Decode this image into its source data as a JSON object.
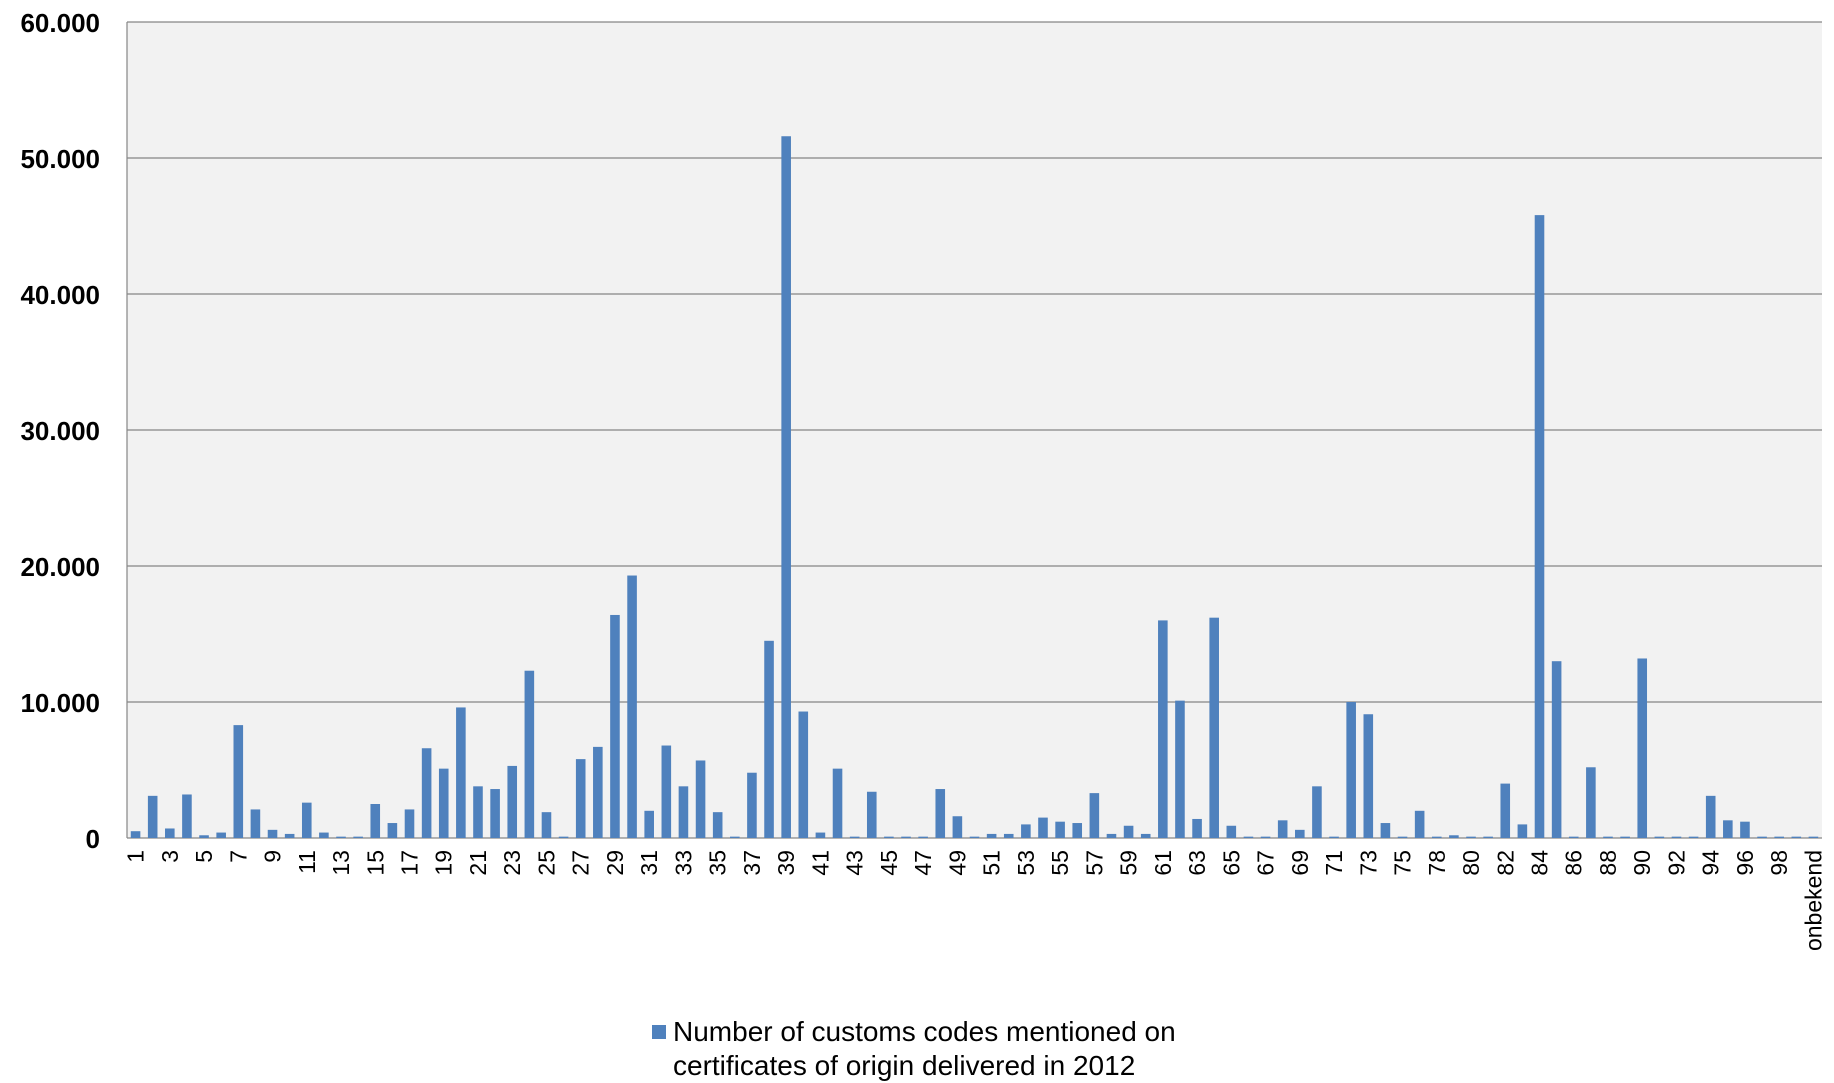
{
  "chart_data": {
    "type": "bar",
    "title": "",
    "xlabel": "",
    "ylabel": "",
    "ylim": [
      0,
      60000
    ],
    "y_ticks": [
      "0",
      "10.000",
      "20.000",
      "30.000",
      "40.000",
      "50.000",
      "60.000"
    ],
    "grid": true,
    "legend_position": "bottom",
    "colors": {
      "bar": "#4F81BD",
      "plot_background": "#F2F2F2",
      "gridline": "#868686",
      "text": "#000000"
    },
    "categories": [
      "1",
      "2",
      "3",
      "4",
      "5",
      "6",
      "7",
      "8",
      "9",
      "10",
      "11",
      "12",
      "13",
      "14",
      "15",
      "16",
      "17",
      "18",
      "19",
      "20",
      "21",
      "22",
      "23",
      "24",
      "25",
      "26",
      "27",
      "28",
      "29",
      "30",
      "31",
      "32",
      "33",
      "34",
      "35",
      "36",
      "37",
      "38",
      "39",
      "40",
      "41",
      "42",
      "43",
      "44",
      "45",
      "46",
      "47",
      "48",
      "49",
      "50",
      "51",
      "52",
      "53",
      "54",
      "55",
      "56",
      "57",
      "58",
      "59",
      "60",
      "61",
      "62",
      "63",
      "64",
      "65",
      "66",
      "67",
      "68",
      "69",
      "70",
      "71",
      "72",
      "73",
      "74",
      "75",
      "76",
      "78",
      "79",
      "80",
      "81",
      "82",
      "83",
      "84",
      "85",
      "86",
      "87",
      "88",
      "89",
      "90",
      "91",
      "92",
      "93",
      "94",
      "95",
      "96",
      "97",
      "98",
      "99",
      "onbekend"
    ],
    "category_labels_shown": [
      "1",
      "3",
      "5",
      "7",
      "9",
      "11",
      "13",
      "15",
      "17",
      "19",
      "21",
      "23",
      "25",
      "27",
      "29",
      "31",
      "33",
      "35",
      "37",
      "39",
      "41",
      "43",
      "45",
      "47",
      "49",
      "51",
      "53",
      "55",
      "57",
      "59",
      "61",
      "63",
      "65",
      "67",
      "69",
      "71",
      "73",
      "75",
      "78",
      "80",
      "82",
      "84",
      "86",
      "88",
      "90",
      "92",
      "94",
      "96",
      "98",
      "onbekend"
    ],
    "series": [
      {
        "name": "Number of customs codes mentioned on certificates of origin delivered in 2012",
        "values": [
          500,
          3100,
          700,
          3200,
          200,
          400,
          8300,
          2100,
          600,
          300,
          2600,
          400,
          100,
          100,
          2500,
          1100,
          2100,
          6600,
          5100,
          9600,
          3800,
          3600,
          5300,
          12300,
          1900,
          100,
          5800,
          6700,
          16400,
          19300,
          2000,
          6800,
          3800,
          5700,
          1900,
          100,
          4800,
          14500,
          51600,
          9300,
          400,
          5100,
          100,
          3400,
          100,
          100,
          100,
          3600,
          1600,
          100,
          300,
          300,
          1000,
          1500,
          1200,
          1100,
          3300,
          300,
          900,
          300,
          16000,
          10100,
          1400,
          16200,
          900,
          100,
          100,
          1300,
          600,
          3800,
          100,
          10000,
          9100,
          1100,
          100,
          2000,
          100,
          200,
          100,
          100,
          4000,
          1000,
          45800,
          13000,
          100,
          5200,
          100,
          100,
          13200,
          100,
          100,
          100,
          3100,
          1300,
          1200,
          100,
          100,
          100,
          100
        ]
      }
    ]
  },
  "legend": {
    "line1": "Number of customs codes mentioned on",
    "line2": "certificates of origin delivered in 2012"
  }
}
